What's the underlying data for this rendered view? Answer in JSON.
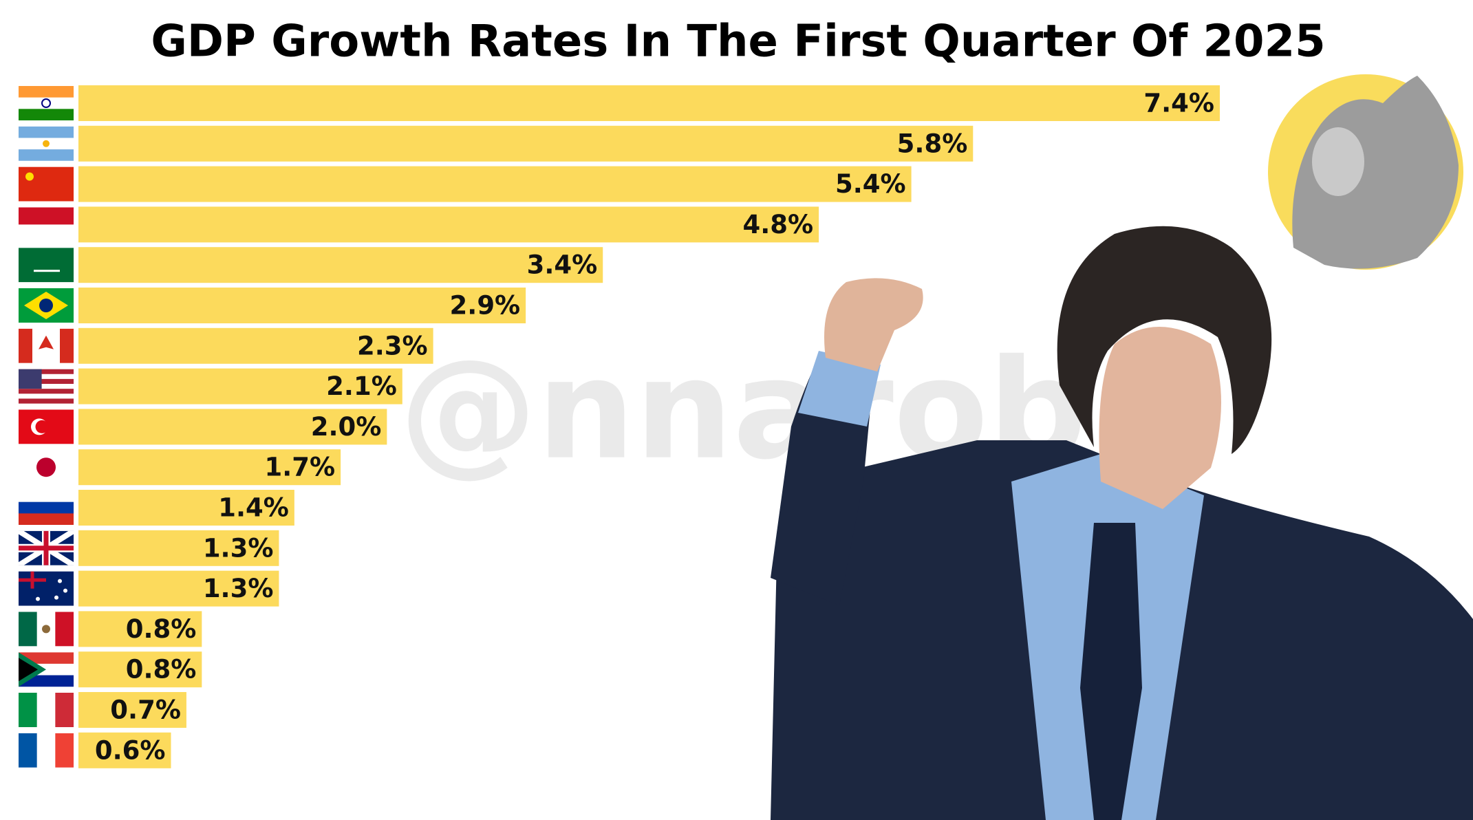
{
  "chart_data": {
    "type": "bar",
    "orientation": "horizontal",
    "title": "GDP Growth Rates In The First Quarter Of 2025",
    "watermark": "@nnarob",
    "categories": [
      null,
      null,
      null,
      null,
      null,
      null,
      null,
      null,
      null,
      null,
      null,
      null,
      null,
      null,
      null,
      null,
      null
    ],
    "values": [
      7.4,
      5.8,
      5.4,
      4.8,
      3.4,
      2.9,
      2.3,
      2.1,
      2.0,
      1.7,
      1.4,
      1.3,
      1.3,
      0.8,
      0.8,
      0.7,
      0.6
    ],
    "value_labels": [
      "7.4%",
      "5.8%",
      "5.4%",
      "4.8%",
      "3.4%",
      "2.9%",
      "2.3%",
      "2.1%",
      "2.0%",
      "1.7%",
      "1.4%",
      "1.3%",
      "1.3%",
      "0.8%",
      "0.8%",
      "0.7%",
      "0.6%"
    ],
    "color": "#fcda5c"
  }
}
